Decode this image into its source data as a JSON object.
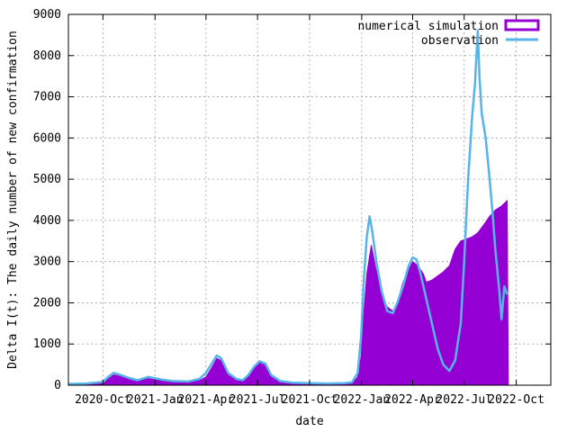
{
  "chart_data": {
    "type": "area",
    "title": "",
    "xlabel": "date",
    "ylabel": "Delta I(t): The daily number of new confirmation",
    "x_start": "2020-08-01",
    "x_range": [
      "2020-08-01",
      "2022-12-01"
    ],
    "ylim": [
      0,
      9000
    ],
    "y_ticks": [
      "0",
      "1000",
      "2000",
      "3000",
      "4000",
      "5000",
      "6000",
      "7000",
      "8000",
      "9000"
    ],
    "x_ticks": [
      {
        "date": "2020-10-01",
        "label": "2020-Oct"
      },
      {
        "date": "2021-01-01",
        "label": "2021-Jan"
      },
      {
        "date": "2021-04-01",
        "label": "2021-Apr"
      },
      {
        "date": "2021-07-01",
        "label": "2021-Jul"
      },
      {
        "date": "2021-10-01",
        "label": "2021-Oct"
      },
      {
        "date": "2022-01-01",
        "label": "2022-Jan"
      },
      {
        "date": "2022-04-01",
        "label": "2022-Apr"
      },
      {
        "date": "2022-07-01",
        "label": "2022-Jul"
      },
      {
        "date": "2022-10-01",
        "label": "2022-Oct"
      }
    ],
    "grid": true,
    "legend_position": "top-right",
    "series": [
      {
        "name": "numerical simulation",
        "style": "filled-area",
        "color": "#9400d3",
        "points": [
          [
            "2020-08-01",
            20
          ],
          [
            "2020-09-01",
            30
          ],
          [
            "2020-10-01",
            60
          ],
          [
            "2020-10-10",
            150
          ],
          [
            "2020-10-20",
            250
          ],
          [
            "2020-11-01",
            220
          ],
          [
            "2020-11-15",
            150
          ],
          [
            "2020-12-01",
            110
          ],
          [
            "2020-12-20",
            160
          ],
          [
            "2021-01-01",
            150
          ],
          [
            "2021-01-15",
            120
          ],
          [
            "2021-02-01",
            100
          ],
          [
            "2021-03-01",
            90
          ],
          [
            "2021-03-20",
            110
          ],
          [
            "2021-04-01",
            200
          ],
          [
            "2021-04-10",
            400
          ],
          [
            "2021-04-20",
            650
          ],
          [
            "2021-04-28",
            600
          ],
          [
            "2021-05-10",
            250
          ],
          [
            "2021-05-25",
            120
          ],
          [
            "2021-06-05",
            100
          ],
          [
            "2021-06-15",
            200
          ],
          [
            "2021-06-25",
            400
          ],
          [
            "2021-07-05",
            550
          ],
          [
            "2021-07-15",
            500
          ],
          [
            "2021-07-25",
            200
          ],
          [
            "2021-08-10",
            80
          ],
          [
            "2021-09-01",
            50
          ],
          [
            "2021-10-01",
            40
          ],
          [
            "2021-11-01",
            30
          ],
          [
            "2021-12-01",
            30
          ],
          [
            "2021-12-15",
            40
          ],
          [
            "2021-12-25",
            200
          ],
          [
            "2021-12-31",
            700
          ],
          [
            "2022-01-05",
            1800
          ],
          [
            "2022-01-10",
            2700
          ],
          [
            "2022-01-18",
            3400
          ],
          [
            "2022-01-25",
            2900
          ],
          [
            "2022-02-05",
            2200
          ],
          [
            "2022-02-15",
            1900
          ],
          [
            "2022-02-25",
            1800
          ],
          [
            "2022-03-05",
            2000
          ],
          [
            "2022-03-15",
            2500
          ],
          [
            "2022-03-25",
            2800
          ],
          [
            "2022-04-01",
            3000
          ],
          [
            "2022-04-10",
            2900
          ],
          [
            "2022-04-20",
            2700
          ],
          [
            "2022-04-25",
            2500
          ],
          [
            "2022-05-05",
            2550
          ],
          [
            "2022-05-15",
            2650
          ],
          [
            "2022-05-25",
            2750
          ],
          [
            "2022-06-05",
            2900
          ],
          [
            "2022-06-15",
            3300
          ],
          [
            "2022-06-25",
            3500
          ],
          [
            "2022-07-05",
            3550
          ],
          [
            "2022-07-15",
            3600
          ],
          [
            "2022-07-25",
            3700
          ],
          [
            "2022-08-05",
            3900
          ],
          [
            "2022-08-15",
            4100
          ],
          [
            "2022-08-25",
            4250
          ],
          [
            "2022-09-05",
            4350
          ],
          [
            "2022-09-15",
            4480
          ],
          [
            "2022-09-17",
            0
          ]
        ]
      },
      {
        "name": "observation",
        "style": "line",
        "color": "#56b4e9",
        "points": [
          [
            "2020-08-01",
            30
          ],
          [
            "2020-09-01",
            40
          ],
          [
            "2020-10-01",
            80
          ],
          [
            "2020-10-10",
            200
          ],
          [
            "2020-10-20",
            300
          ],
          [
            "2020-11-01",
            250
          ],
          [
            "2020-11-15",
            180
          ],
          [
            "2020-12-01",
            120
          ],
          [
            "2020-12-20",
            200
          ],
          [
            "2021-01-01",
            170
          ],
          [
            "2021-01-15",
            130
          ],
          [
            "2021-02-01",
            100
          ],
          [
            "2021-03-01",
            90
          ],
          [
            "2021-03-20",
            150
          ],
          [
            "2021-04-01",
            300
          ],
          [
            "2021-04-10",
            500
          ],
          [
            "2021-04-20",
            720
          ],
          [
            "2021-04-28",
            650
          ],
          [
            "2021-05-10",
            300
          ],
          [
            "2021-05-25",
            150
          ],
          [
            "2021-06-05",
            120
          ],
          [
            "2021-06-15",
            250
          ],
          [
            "2021-06-25",
            450
          ],
          [
            "2021-07-05",
            580
          ],
          [
            "2021-07-15",
            520
          ],
          [
            "2021-07-25",
            250
          ],
          [
            "2021-08-10",
            100
          ],
          [
            "2021-09-01",
            60
          ],
          [
            "2021-10-01",
            50
          ],
          [
            "2021-11-01",
            40
          ],
          [
            "2021-12-01",
            50
          ],
          [
            "2021-12-15",
            70
          ],
          [
            "2021-12-25",
            300
          ],
          [
            "2021-12-31",
            1200
          ],
          [
            "2022-01-05",
            2600
          ],
          [
            "2022-01-10",
            3600
          ],
          [
            "2022-01-15",
            4100
          ],
          [
            "2022-01-20",
            3700
          ],
          [
            "2022-01-27",
            3000
          ],
          [
            "2022-02-05",
            2300
          ],
          [
            "2022-02-15",
            1800
          ],
          [
            "2022-02-25",
            1750
          ],
          [
            "2022-03-05",
            2000
          ],
          [
            "2022-03-15",
            2400
          ],
          [
            "2022-03-25",
            2900
          ],
          [
            "2022-04-01",
            3100
          ],
          [
            "2022-04-08",
            3050
          ],
          [
            "2022-04-15",
            2700
          ],
          [
            "2022-04-25",
            2100
          ],
          [
            "2022-05-05",
            1500
          ],
          [
            "2022-05-15",
            900
          ],
          [
            "2022-05-25",
            500
          ],
          [
            "2022-06-05",
            350
          ],
          [
            "2022-06-15",
            600
          ],
          [
            "2022-06-25",
            1500
          ],
          [
            "2022-07-01",
            3000
          ],
          [
            "2022-07-08",
            5000
          ],
          [
            "2022-07-15",
            6500
          ],
          [
            "2022-07-20",
            7300
          ],
          [
            "2022-07-25",
            8600
          ],
          [
            "2022-07-28",
            7500
          ],
          [
            "2022-08-01",
            6600
          ],
          [
            "2022-08-08",
            6000
          ],
          [
            "2022-08-15",
            5000
          ],
          [
            "2022-08-20",
            4200
          ],
          [
            "2022-08-25",
            3300
          ],
          [
            "2022-09-01",
            2300
          ],
          [
            "2022-09-05",
            1600
          ],
          [
            "2022-09-10",
            2400
          ],
          [
            "2022-09-15",
            2200
          ]
        ]
      }
    ]
  }
}
